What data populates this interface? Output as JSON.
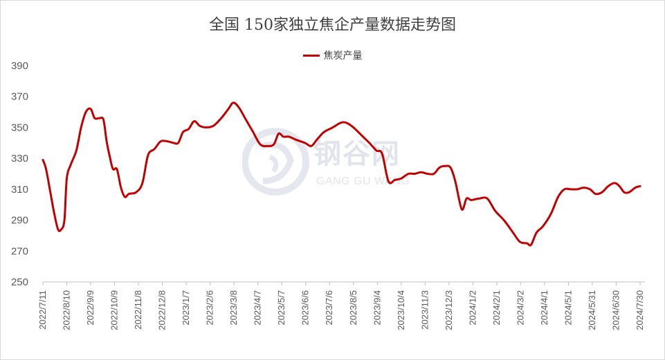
{
  "chart_data": {
    "type": "line",
    "title": "全国 150家独立焦企产量数据走势图",
    "legend": [
      "焦炭产量"
    ],
    "legend_position": "top-center",
    "series": [
      {
        "name": "焦炭产量",
        "color": "#c00000",
        "points": [
          [
            "2022-07-11",
            329
          ],
          [
            "2022-07-15",
            323
          ],
          [
            "2022-07-20",
            309
          ],
          [
            "2022-07-25",
            295
          ],
          [
            "2022-07-30",
            284
          ],
          [
            "2022-08-03",
            284
          ],
          [
            "2022-08-07",
            290
          ],
          [
            "2022-08-10",
            317
          ],
          [
            "2022-08-15",
            326
          ],
          [
            "2022-08-22",
            335
          ],
          [
            "2022-08-28",
            350
          ],
          [
            "2022-09-03",
            360
          ],
          [
            "2022-09-09",
            362
          ],
          [
            "2022-09-14",
            356
          ],
          [
            "2022-09-20",
            356
          ],
          [
            "2022-09-25",
            355
          ],
          [
            "2022-09-29",
            341
          ],
          [
            "2022-10-03",
            331
          ],
          [
            "2022-10-07",
            323
          ],
          [
            "2022-10-12",
            323
          ],
          [
            "2022-10-17",
            311
          ],
          [
            "2022-10-22",
            305
          ],
          [
            "2022-10-27",
            307
          ],
          [
            "2022-11-05",
            308
          ],
          [
            "2022-11-13",
            314
          ],
          [
            "2022-11-20",
            332
          ],
          [
            "2022-11-28",
            336
          ],
          [
            "2022-12-06",
            341
          ],
          [
            "2022-12-14",
            341
          ],
          [
            "2022-12-22",
            340
          ],
          [
            "2022-12-28",
            340
          ],
          [
            "2023-01-03",
            347
          ],
          [
            "2023-01-10",
            349
          ],
          [
            "2023-01-17",
            354
          ],
          [
            "2023-01-24",
            351
          ],
          [
            "2023-02-01",
            350
          ],
          [
            "2023-02-10",
            351
          ],
          [
            "2023-02-20",
            356
          ],
          [
            "2023-03-01",
            362
          ],
          [
            "2023-03-07",
            366
          ],
          [
            "2023-03-14",
            363
          ],
          [
            "2023-03-23",
            355
          ],
          [
            "2023-04-01",
            347
          ],
          [
            "2023-04-10",
            339
          ],
          [
            "2023-04-19",
            338
          ],
          [
            "2023-04-27",
            339
          ],
          [
            "2023-05-03",
            346
          ],
          [
            "2023-05-09",
            344
          ],
          [
            "2023-05-16",
            344
          ],
          [
            "2023-05-25",
            342
          ],
          [
            "2023-06-05",
            340
          ],
          [
            "2023-06-13",
            338
          ],
          [
            "2023-06-20",
            342
          ],
          [
            "2023-06-29",
            347
          ],
          [
            "2023-07-10",
            350
          ],
          [
            "2023-07-20",
            353
          ],
          [
            "2023-07-27",
            353
          ],
          [
            "2023-08-05",
            350
          ],
          [
            "2023-08-15",
            345
          ],
          [
            "2023-08-25",
            340
          ],
          [
            "2023-09-03",
            335
          ],
          [
            "2023-09-10",
            333
          ],
          [
            "2023-09-18",
            315
          ],
          [
            "2023-09-26",
            316
          ],
          [
            "2023-10-04",
            317
          ],
          [
            "2023-10-13",
            320
          ],
          [
            "2023-10-21",
            320
          ],
          [
            "2023-10-29",
            321
          ],
          [
            "2023-11-06",
            320
          ],
          [
            "2023-11-14",
            320
          ],
          [
            "2023-11-21",
            324
          ],
          [
            "2023-11-28",
            325
          ],
          [
            "2023-12-05",
            324
          ],
          [
            "2023-12-11",
            315
          ],
          [
            "2023-12-19",
            297
          ],
          [
            "2023-12-25",
            304
          ],
          [
            "2023-12-31",
            303
          ],
          [
            "2024-01-10",
            304
          ],
          [
            "2024-01-20",
            304
          ],
          [
            "2024-01-30",
            296
          ],
          [
            "2024-02-10",
            290
          ],
          [
            "2024-02-20",
            283
          ],
          [
            "2024-03-01",
            276
          ],
          [
            "2024-03-10",
            275
          ],
          [
            "2024-03-15",
            274
          ],
          [
            "2024-03-22",
            282
          ],
          [
            "2024-03-30",
            286
          ],
          [
            "2024-04-09",
            294
          ],
          [
            "2024-04-18",
            305
          ],
          [
            "2024-04-26",
            310
          ],
          [
            "2024-05-04",
            310
          ],
          [
            "2024-05-12",
            310
          ],
          [
            "2024-05-20",
            311
          ],
          [
            "2024-05-28",
            310
          ],
          [
            "2024-06-04",
            307
          ],
          [
            "2024-06-12",
            308
          ],
          [
            "2024-06-20",
            312
          ],
          [
            "2024-06-28",
            314
          ],
          [
            "2024-07-04",
            312
          ],
          [
            "2024-07-10",
            308
          ],
          [
            "2024-07-16",
            308
          ],
          [
            "2024-07-24",
            311
          ],
          [
            "2024-07-30",
            312
          ]
        ]
      }
    ],
    "y_ticks": [
      250,
      270,
      290,
      310,
      330,
      350,
      370,
      390
    ],
    "ylim": [
      250,
      390
    ],
    "x_ticks": [
      "2022/7/11",
      "2022/8/10",
      "2022/9/9",
      "2022/10/9",
      "2022/11/8",
      "2022/12/8",
      "2023/1/7",
      "2023/2/6",
      "2023/3/8",
      "2023/4/7",
      "2023/5/7",
      "2023/6/6",
      "2023/7/6",
      "2023/8/5",
      "2023/9/4",
      "2023/10/4",
      "2023/11/3",
      "2023/12/3",
      "2024/1/2",
      "2024/2/1",
      "2024/3/2",
      "2024/4/1",
      "2024/5/1",
      "2024/5/31",
      "2024/6/30",
      "2024/7/30"
    ],
    "x_tick_dates": [
      "2022-07-11",
      "2022-08-10",
      "2022-09-09",
      "2022-10-09",
      "2022-11-08",
      "2022-12-08",
      "2023-01-07",
      "2023-02-06",
      "2023-03-08",
      "2023-04-07",
      "2023-05-07",
      "2023-06-06",
      "2023-07-06",
      "2023-08-05",
      "2023-09-04",
      "2023-10-04",
      "2023-11-03",
      "2023-12-03",
      "2024-01-02",
      "2024-02-01",
      "2024-03-02",
      "2024-04-01",
      "2024-05-01",
      "2024-05-31",
      "2024-06-30",
      "2024-07-30"
    ],
    "grid": false
  },
  "watermark": {
    "brand": "钢谷网",
    "brand_latin": "GANG GU WANG"
  }
}
